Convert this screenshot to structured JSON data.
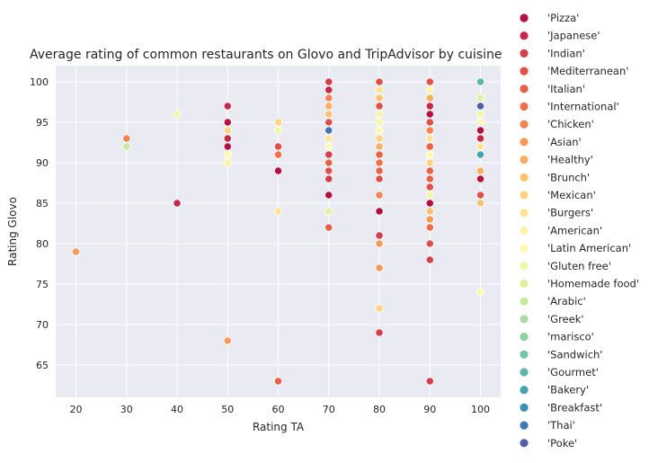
{
  "chart_data": {
    "type": "scatter",
    "title": "Average rating of common restaurants on Glovo and TripAdvisor by cuisine",
    "xlabel": "Rating TA",
    "ylabel": "Rating Glovo",
    "xlim": [
      16,
      104
    ],
    "ylim": [
      61,
      102
    ],
    "xticks": [
      20,
      30,
      40,
      50,
      60,
      70,
      80,
      90,
      100
    ],
    "yticks": [
      65,
      70,
      75,
      80,
      85,
      90,
      95,
      100
    ],
    "grid": true,
    "legend_placement": "right-outside",
    "series": [
      {
        "name": "'Pizza'",
        "color": "#b5113f",
        "points": [
          [
            50,
            95
          ],
          [
            50,
            92
          ],
          [
            60,
            89
          ],
          [
            70,
            86
          ],
          [
            80,
            95
          ],
          [
            80,
            84
          ],
          [
            80,
            90
          ],
          [
            90,
            96
          ],
          [
            90,
            90
          ],
          [
            90,
            85
          ],
          [
            100,
            94
          ],
          [
            100,
            88
          ]
        ]
      },
      {
        "name": "'Japanese'",
        "color": "#c72748",
        "points": [
          [
            40,
            85
          ],
          [
            50,
            97
          ],
          [
            50,
            93
          ],
          [
            70,
            99
          ],
          [
            90,
            97
          ],
          [
            100,
            93
          ]
        ]
      },
      {
        "name": "'Indian'",
        "color": "#d83d4b",
        "points": [
          [
            70,
            100
          ],
          [
            70,
            91
          ],
          [
            70,
            88
          ],
          [
            80,
            81
          ],
          [
            80,
            69
          ],
          [
            90,
            78
          ],
          [
            90,
            63
          ]
        ]
      },
      {
        "name": "'Mediterranean'",
        "color": "#e04f4a",
        "points": [
          [
            60,
            92
          ],
          [
            70,
            95
          ],
          [
            70,
            89
          ],
          [
            80,
            100
          ],
          [
            80,
            97
          ],
          [
            80,
            88
          ],
          [
            90,
            100
          ],
          [
            90,
            95
          ],
          [
            90,
            87
          ],
          [
            90,
            80
          ],
          [
            100,
            86
          ]
        ]
      },
      {
        "name": "'Italian'",
        "color": "#ea6045",
        "points": [
          [
            60,
            63
          ],
          [
            70,
            82
          ],
          [
            70,
            90
          ],
          [
            80,
            89
          ],
          [
            80,
            91
          ],
          [
            90,
            88
          ],
          [
            90,
            92
          ],
          [
            90,
            89
          ]
        ]
      },
      {
        "name": "'International'",
        "color": "#f26e48",
        "points": [
          [
            60,
            91
          ],
          [
            80,
            90
          ],
          [
            90,
            82
          ],
          [
            100,
            85
          ]
        ]
      },
      {
        "name": "'Chicken'",
        "color": "#f6844f",
        "points": [
          [
            30,
            93
          ],
          [
            70,
            98
          ],
          [
            80,
            86
          ],
          [
            90,
            94
          ]
        ]
      },
      {
        "name": "'Asian'",
        "color": "#f99b56",
        "points": [
          [
            20,
            79
          ],
          [
            50,
            68
          ],
          [
            80,
            80
          ],
          [
            80,
            77
          ],
          [
            90,
            83
          ]
        ]
      },
      {
        "name": "'Healthy'",
        "color": "#fbae5f",
        "points": [
          [
            70,
            97
          ],
          [
            80,
            92
          ],
          [
            90,
            98
          ],
          [
            100,
            89
          ]
        ]
      },
      {
        "name": "'Brunch'",
        "color": "#fdc270",
        "points": [
          [
            70,
            96
          ],
          [
            80,
            98
          ],
          [
            90,
            84
          ],
          [
            100,
            85
          ]
        ]
      },
      {
        "name": "'Mexican'",
        "color": "#fdd582",
        "points": [
          [
            50,
            94
          ],
          [
            60,
            95
          ],
          [
            80,
            72
          ],
          [
            80,
            93
          ],
          [
            90,
            90
          ]
        ]
      },
      {
        "name": "'Burgers'",
        "color": "#fee595",
        "points": [
          [
            40,
            96
          ],
          [
            60,
            84
          ],
          [
            70,
            93
          ],
          [
            80,
            99
          ],
          [
            90,
            93
          ],
          [
            100,
            92
          ]
        ]
      },
      {
        "name": "'American'",
        "color": "#fff3a8",
        "points": [
          [
            50,
            90
          ],
          [
            70,
            94
          ],
          [
            80,
            96
          ],
          [
            90,
            99
          ],
          [
            100,
            97
          ]
        ]
      },
      {
        "name": "'Latin American'",
        "color": "#fcfab1",
        "points": [
          [
            50,
            91
          ],
          [
            60,
            94
          ],
          [
            70,
            92
          ],
          [
            80,
            94
          ],
          [
            90,
            91
          ],
          [
            100,
            74
          ],
          [
            100,
            95
          ]
        ]
      },
      {
        "name": "'Gluten free'",
        "color": "#eff8a6",
        "points": [
          [
            40,
            96
          ],
          [
            60,
            94
          ],
          [
            80,
            95
          ],
          [
            90,
            86
          ],
          [
            100,
            96
          ]
        ]
      },
      {
        "name": "'Homemade food'",
        "color": "#dff19c",
        "points": [
          [
            70,
            84
          ],
          [
            100,
            98
          ]
        ]
      },
      {
        "name": "'Arabic'",
        "color": "#c7e89e",
        "points": [
          [
            30,
            92
          ]
        ]
      },
      {
        "name": "'Greek'",
        "color": "#a9dca3",
        "points": []
      },
      {
        "name": "'marisco'",
        "color": "#8dd1a4",
        "points": []
      },
      {
        "name": "'Sandwich'",
        "color": "#74c5a5",
        "points": []
      },
      {
        "name": "'Gourmet'",
        "color": "#5cb7a9",
        "points": [
          [
            100,
            100
          ]
        ]
      },
      {
        "name": "'Bakery'",
        "color": "#45a3b0",
        "points": [
          [
            100,
            91
          ]
        ]
      },
      {
        "name": "'Breakfast'",
        "color": "#3a8eba",
        "points": []
      },
      {
        "name": "'Thai'",
        "color": "#4077b6",
        "points": [
          [
            70,
            94
          ]
        ]
      },
      {
        "name": "'Poke'",
        "color": "#5160a9",
        "points": [
          [
            100,
            97
          ]
        ]
      }
    ]
  }
}
